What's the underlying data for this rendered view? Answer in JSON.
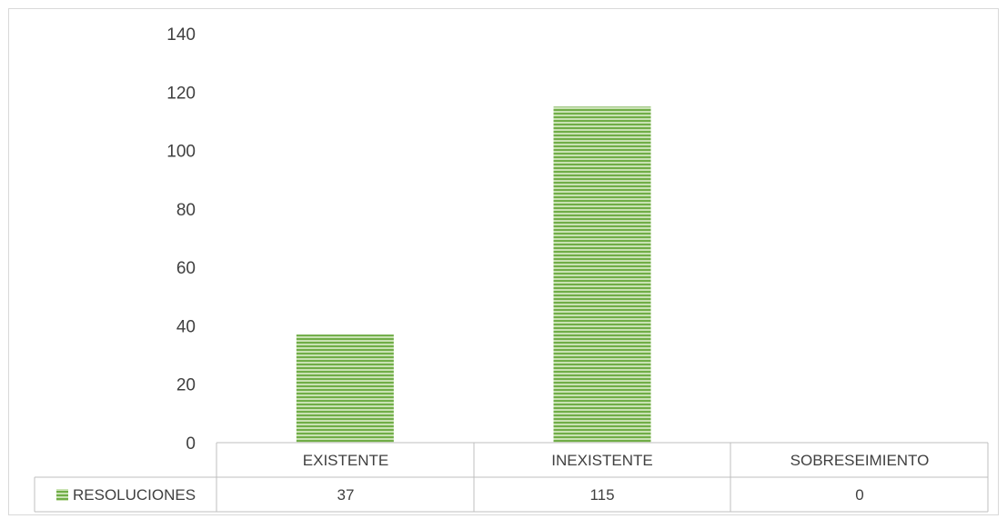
{
  "chart_data": {
    "type": "bar",
    "categories": [
      "EXISTENTE",
      "INEXISTENTE",
      "SOBRESEIMIENTO"
    ],
    "series": [
      {
        "name": "RESOLUCIONES",
        "values": [
          37,
          115,
          0
        ],
        "color": "#70ad47"
      }
    ],
    "ylim": [
      0,
      140
    ],
    "yticks": [
      "0",
      "20",
      "40",
      "60",
      "80",
      "100",
      "120",
      "140"
    ],
    "title": "",
    "xlabel": "",
    "ylabel": "",
    "grid": false,
    "legend": "data-table",
    "data_table": true,
    "table_values": [
      "37",
      "115",
      "0"
    ]
  }
}
